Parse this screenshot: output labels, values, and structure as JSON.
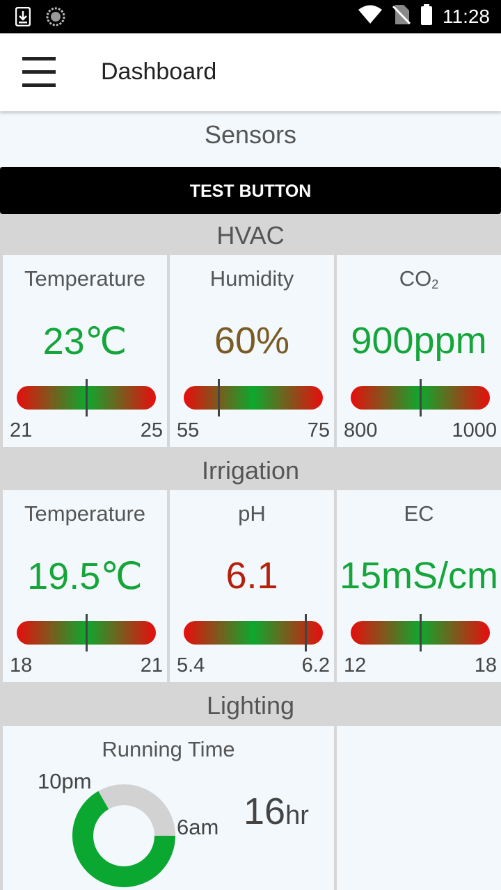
{
  "status_bar": {
    "time": "11:28"
  },
  "app_bar": {
    "title": "Dashboard"
  },
  "sensors": {
    "title": "Sensors",
    "test_button": "TEST BUTTON"
  },
  "colors": {
    "good": "#15a53a",
    "warn": "#7a5b24",
    "bad": "#b5200d",
    "ring_fill": "#0aa830",
    "ring_empty": "#d2d2d2"
  },
  "hvac": {
    "title": "HVAC",
    "cards": [
      {
        "label": "Temperature",
        "value": "23℃",
        "min": "21",
        "max": "25",
        "position": 0.5,
        "status": "good"
      },
      {
        "label": "Humidity",
        "value": "60%",
        "min": "55",
        "max": "75",
        "position": 0.25,
        "status": "warn"
      },
      {
        "label_main": "CO",
        "label_sub": "2",
        "value": "900ppm",
        "min": "800",
        "max": "1000",
        "position": 0.5,
        "status": "good"
      }
    ]
  },
  "irrigation": {
    "title": "Irrigation",
    "cards": [
      {
        "label": "Temperature",
        "value": "19.5℃",
        "min": "18",
        "max": "21",
        "position": 0.5,
        "status": "good"
      },
      {
        "label": "pH",
        "value": "6.1",
        "min": "5.4",
        "max": "6.2",
        "position": 0.875,
        "status": "bad"
      },
      {
        "label": "EC",
        "value": "15mS/cm",
        "min": "12",
        "max": "18",
        "position": 0.5,
        "status": "good"
      }
    ]
  },
  "lighting": {
    "title": "Lighting",
    "running_time": {
      "label": "Running Time",
      "start_label": "10pm",
      "end_label": "6am",
      "hours": "16",
      "unit": "hr",
      "fraction": 0.667
    }
  }
}
